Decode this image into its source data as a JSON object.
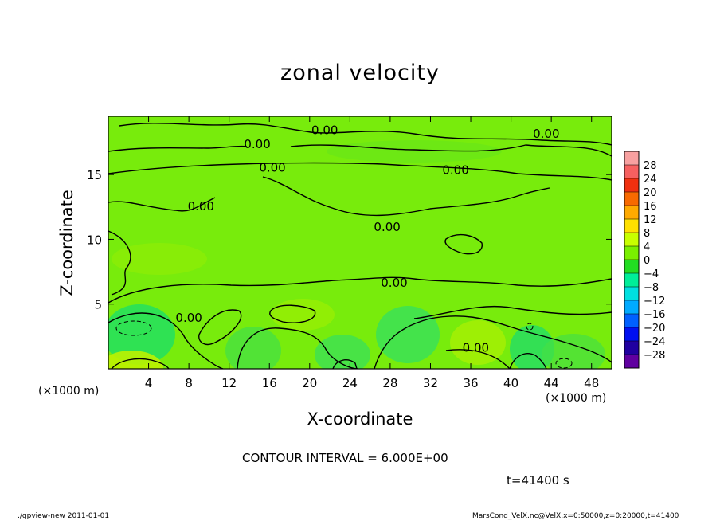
{
  "chart_data": {
    "type": "heatmap",
    "title": "zonal velocity",
    "xlabel": "X-coordinate",
    "ylabel": "Z-coordinate",
    "x_unit_label": "(×1000 m)",
    "z_unit_label": "(×1000 m)",
    "xlim": [
      0,
      50
    ],
    "ylim": [
      0,
      19.5
    ],
    "x_ticks": [
      "4",
      "8",
      "12",
      "16",
      "20",
      "24",
      "28",
      "32",
      "36",
      "40",
      "44",
      "48"
    ],
    "x_tick_values": [
      4,
      8,
      12,
      16,
      20,
      24,
      28,
      32,
      36,
      40,
      44,
      48
    ],
    "y_ticks": [
      "5",
      "10",
      "15"
    ],
    "y_tick_values": [
      5,
      10,
      15
    ],
    "colorbar": {
      "labels": [
        "28",
        "24",
        "20",
        "16",
        "12",
        "8",
        "4",
        "0",
        "−4",
        "−8",
        "−12",
        "−16",
        "−20",
        "−24",
        "−28"
      ],
      "colors": [
        "#f7a0a0",
        "#f66060",
        "#f03010",
        "#f86a00",
        "#ffaa00",
        "#ffe000",
        "#c8ff00",
        "#7aef00",
        "#22dd22",
        "#00ee99",
        "#00e0e0",
        "#00aaff",
        "#0060ff",
        "#0010f0",
        "#2000a0",
        "#6000a0"
      ]
    },
    "contour_labels": [
      {
        "text": "0.00",
        "x": 21.5,
        "z": 18.5
      },
      {
        "text": "0.00",
        "x": 43.5,
        "z": 18.2
      },
      {
        "text": "0.00",
        "x": 14.8,
        "z": 17.4
      },
      {
        "text": "0.00",
        "x": 16.3,
        "z": 15.6
      },
      {
        "text": "0.00",
        "x": 34.5,
        "z": 15.4
      },
      {
        "text": "0.00",
        "x": 9.2,
        "z": 12.6
      },
      {
        "text": "0.00",
        "x": 27.7,
        "z": 11.0
      },
      {
        "text": "0.00",
        "x": 28.4,
        "z": 6.7
      },
      {
        "text": "0.00",
        "x": 8.0,
        "z": 4.0
      },
      {
        "text": "0.00",
        "x": 36.5,
        "z": 1.7
      }
    ],
    "contour_interval": "CONTOUR INTERVAL = 6.000E+00",
    "time": "t=41400  s"
  },
  "footer": {
    "left": "./gpview-new   2011-01-01",
    "right": "MarsCond_VelX.nc@VelX,x=0:50000,z=0:20000,t=41400"
  }
}
